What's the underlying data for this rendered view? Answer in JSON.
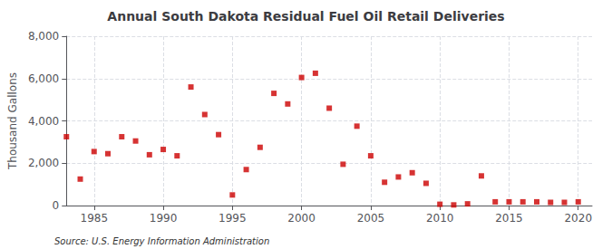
{
  "chart_data": {
    "type": "scatter",
    "title": "Annual South Dakota Residual Fuel Oil Retail Deliveries",
    "ylabel": "Thousand Gallons",
    "annotations": [
      "Source: U.S. Energy Information Administration"
    ],
    "color": "#cc0000",
    "marker": "square",
    "xlim": [
      1983,
      2021
    ],
    "ylim": [
      0,
      8000
    ],
    "xticks": [
      1985,
      1990,
      1995,
      2000,
      2005,
      2010,
      2015,
      2020
    ],
    "yticks": [
      0,
      {
        "value": 2000,
        "label": "2,000"
      },
      {
        "value": 4000,
        "label": "4,000"
      },
      {
        "value": 6000,
        "label": "6,000"
      },
      {
        "value": 8000,
        "label": "8,000"
      }
    ],
    "grid": true,
    "x": [
      1983,
      1984,
      1985,
      1986,
      1987,
      1988,
      1989,
      1990,
      1991,
      1992,
      1993,
      1994,
      1995,
      1996,
      1997,
      1998,
      1999,
      2000,
      2001,
      2002,
      2003,
      2004,
      2005,
      2006,
      2007,
      2008,
      2009,
      2010,
      2011,
      2012,
      2013,
      2014,
      2015,
      2016,
      2017,
      2018,
      2019,
      2020
    ],
    "values": [
      3250,
      1250,
      2550,
      2450,
      3250,
      3050,
      2400,
      2650,
      2350,
      5600,
      4300,
      3350,
      500,
      1700,
      2750,
      5300,
      4800,
      6050,
      6250,
      4600,
      1950,
      3750,
      2350,
      1100,
      1350,
      1550,
      1050,
      60,
      30,
      80,
      1400,
      175,
      175,
      175,
      175,
      150,
      150,
      175
    ]
  }
}
